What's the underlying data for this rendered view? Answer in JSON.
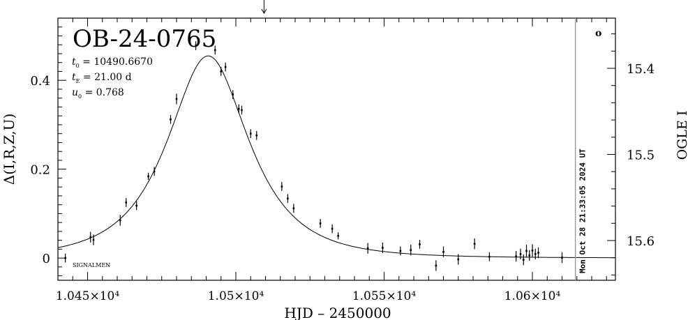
{
  "chart_data": {
    "type": "scatter",
    "title": "OB-24-0765",
    "xlabel": "HJD – 2450000",
    "ylabel_left": "Δ(I,R,Z,U)",
    "ylabel_right": "OGLE I",
    "xlim": [
      10440,
      10628
    ],
    "ylim": [
      -0.05,
      0.54
    ],
    "right_axis": {
      "ticks": [
        15.4,
        15.5,
        15.6
      ],
      "tick_labels": [
        "15.4",
        "15.5",
        "15.6"
      ]
    },
    "x_ticks": [
      10450,
      10500,
      10550,
      10600
    ],
    "x_tick_labels": [
      "1.045×10⁴",
      "1.05×10⁴",
      "1.055×10⁴",
      "1.06×10⁴"
    ],
    "y_ticks": [
      0,
      0.2,
      0.4
    ],
    "y_tick_labels": [
      "0",
      "0.2",
      "0.4"
    ],
    "params": [
      {
        "name": "t₀",
        "sym": "t",
        "sub": "0",
        "value": "= 10490.6670"
      },
      {
        "name": "tE",
        "sym": "t",
        "sub": "E",
        "value": "= 21.00 d"
      },
      {
        "name": "u₀",
        "sym": "u",
        "sub": "0",
        "value": "= 0.768"
      }
    ],
    "model": {
      "t0": 10490.667,
      "tE": 21.0,
      "u0": 0.768,
      "scale": 0.455
    },
    "points": [
      [
        10442.5,
        0.0,
        0.01
      ],
      [
        10451.0,
        0.047,
        0.012
      ],
      [
        10452.0,
        0.041,
        0.012
      ],
      [
        10461.0,
        0.085,
        0.012
      ],
      [
        10463.0,
        0.125,
        0.01
      ],
      [
        10466.5,
        0.118,
        0.01
      ],
      [
        10470.5,
        0.184,
        0.008
      ],
      [
        10472.5,
        0.195,
        0.01
      ],
      [
        10478.0,
        0.312,
        0.01
      ],
      [
        10480.0,
        0.358,
        0.012
      ],
      [
        10486.5,
        0.478,
        0.01
      ],
      [
        10493.0,
        0.468,
        0.01
      ],
      [
        10495.0,
        0.42,
        0.01
      ],
      [
        10496.5,
        0.43,
        0.01
      ],
      [
        10499.0,
        0.368,
        0.01
      ],
      [
        10501.0,
        0.336,
        0.01
      ],
      [
        10502.0,
        0.333,
        0.01
      ],
      [
        10505.0,
        0.28,
        0.01
      ],
      [
        10507.0,
        0.276,
        0.01
      ],
      [
        10515.5,
        0.161,
        0.01
      ],
      [
        10517.5,
        0.134,
        0.01
      ],
      [
        10519.5,
        0.112,
        0.01
      ],
      [
        10528.5,
        0.078,
        0.01
      ],
      [
        10532.5,
        0.066,
        0.01
      ],
      [
        10534.5,
        0.05,
        0.008
      ],
      [
        10544.5,
        0.022,
        0.012
      ],
      [
        10549.5,
        0.023,
        0.012
      ],
      [
        10555.5,
        0.016,
        0.01
      ],
      [
        10559.0,
        0.018,
        0.012
      ],
      [
        10562.0,
        0.031,
        0.01
      ],
      [
        10567.5,
        -0.017,
        0.012
      ],
      [
        10570.0,
        0.014,
        0.012
      ],
      [
        10575.0,
        -0.003,
        0.012
      ],
      [
        10580.5,
        0.032,
        0.012
      ],
      [
        10585.5,
        0.003,
        0.01
      ],
      [
        10594.5,
        0.004,
        0.012
      ],
      [
        10596.0,
        0.009,
        0.012
      ],
      [
        10597.0,
        -0.004,
        0.012
      ],
      [
        10598.0,
        0.016,
        0.014
      ],
      [
        10599.0,
        0.006,
        0.012
      ],
      [
        10600.0,
        0.017,
        0.014
      ],
      [
        10601.0,
        0.009,
        0.012
      ],
      [
        10602.0,
        0.012,
        0.012
      ],
      [
        10610.0,
        0.001,
        0.012
      ]
    ],
    "vline_x": 10614.5,
    "arrow_x": 10509.5,
    "side_label": "Mon Oct 28 21:33:05 2024 UT",
    "corner_label": "SIGNALMEN",
    "corner_symbol": "o",
    "grid": false,
    "legend": "none"
  }
}
